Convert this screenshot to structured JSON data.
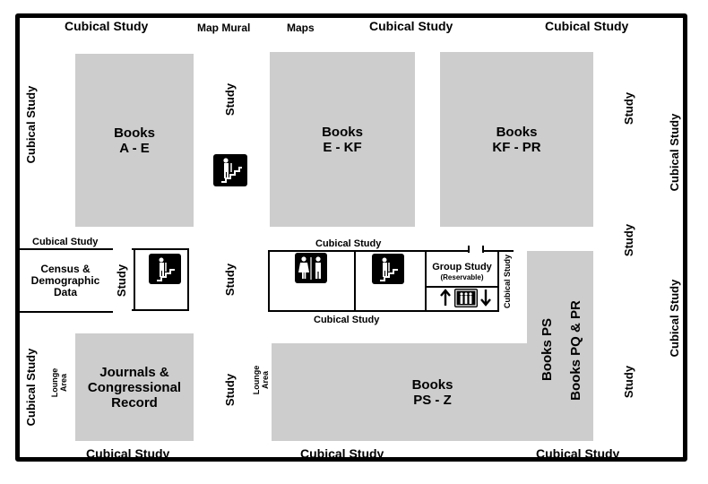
{
  "map": {
    "cubical_study": "Cubical Study",
    "study": "Study",
    "map_mural": "Map Mural",
    "maps": "Maps",
    "census": [
      "Census &",
      "Demographic",
      "Data"
    ],
    "group_study": "Group Study",
    "reservable": "(Reservable)",
    "lounge": [
      "Lounge",
      "Area"
    ],
    "books_ae": [
      "Books",
      "A - E"
    ],
    "books_ekf": [
      "Books",
      "E - KF"
    ],
    "books_kfpr": [
      "Books",
      "KF - PR"
    ],
    "journals": [
      "Journals &",
      "Congressional",
      "Record"
    ],
    "books_psz": [
      "Books",
      "PS - Z"
    ],
    "books_ps": "Books PS",
    "books_pqpr": "Books PQ & PR"
  },
  "icons": [
    "stairs-icon",
    "restroom-icon",
    "elevator-icon",
    "arrow-up-icon",
    "arrow-down-icon"
  ],
  "colors": {
    "shelf": "#cdcdcd",
    "ink": "#000000",
    "background": "#ffffff"
  }
}
